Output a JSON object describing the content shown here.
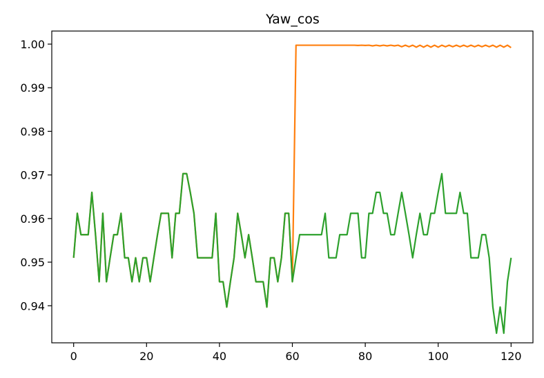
{
  "chart_data": {
    "type": "line",
    "title": "Yaw_cos",
    "xlabel": "",
    "ylabel": "",
    "xlim": [
      -6,
      126
    ],
    "ylim": [
      0.9315,
      1.003
    ],
    "xticks": [
      0,
      20,
      40,
      60,
      80,
      100,
      120
    ],
    "xtick_labels": [
      "0",
      "20",
      "40",
      "60",
      "80",
      "100",
      "120"
    ],
    "yticks": [
      0.94,
      0.95,
      0.96,
      0.97,
      0.98,
      0.99,
      1.0
    ],
    "ytick_labels": [
      "0.94",
      "0.95",
      "0.96",
      "0.97",
      "0.98",
      "0.99",
      "1.00"
    ],
    "grid": false,
    "legend": "none",
    "series": [
      {
        "color": "#ff7f0e",
        "x": [
          0,
          1,
          2,
          3,
          4,
          5,
          6,
          7,
          8,
          9,
          10,
          11,
          12,
          13,
          14,
          15,
          16,
          17,
          18,
          19,
          20,
          21,
          22,
          23,
          24,
          25,
          26,
          27,
          28,
          29,
          30,
          31,
          32,
          33,
          34,
          35,
          36,
          37,
          38,
          39,
          40,
          41,
          42,
          43,
          44,
          45,
          46,
          47,
          48,
          49,
          50,
          51,
          52,
          53,
          54,
          55,
          56,
          57,
          58,
          59,
          60,
          61,
          62,
          63,
          64,
          65,
          66,
          67,
          68,
          69,
          70,
          71,
          72,
          73,
          74,
          75,
          76,
          77,
          78,
          79,
          80,
          81,
          82,
          83,
          84,
          85,
          86,
          87,
          88,
          89,
          90,
          91,
          92,
          93,
          94,
          95,
          96,
          97,
          98,
          99,
          100,
          101,
          102,
          103,
          104,
          105,
          106,
          107,
          108,
          109,
          110,
          111,
          112,
          113,
          114,
          115,
          116,
          117,
          118,
          119,
          120
        ],
        "y": [
          0.951,
          0.9612,
          0.9563,
          0.9563,
          0.9563,
          0.966,
          0.9563,
          0.9455,
          0.9612,
          0.9455,
          0.951,
          0.9563,
          0.9563,
          0.9612,
          0.951,
          0.951,
          0.9455,
          0.951,
          0.9455,
          0.951,
          0.951,
          0.9455,
          0.951,
          0.9563,
          0.9612,
          0.9612,
          0.9612,
          0.951,
          0.9612,
          0.9612,
          0.9703,
          0.9703,
          0.966,
          0.9612,
          0.951,
          0.951,
          0.951,
          0.951,
          0.951,
          0.9612,
          0.9455,
          0.9455,
          0.9397,
          0.9455,
          0.951,
          0.9612,
          0.9563,
          0.951,
          0.9563,
          0.951,
          0.9455,
          0.9455,
          0.9455,
          0.9397,
          0.951,
          0.951,
          0.9455,
          0.951,
          0.9612,
          0.9612,
          0.9455,
          0.99975,
          0.99975,
          0.99975,
          0.99975,
          0.99975,
          0.99975,
          0.99975,
          0.99975,
          0.99975,
          0.99975,
          0.99975,
          0.99975,
          0.99975,
          0.99975,
          0.99975,
          0.99975,
          0.99975,
          0.9997,
          0.99975,
          0.9997,
          0.99975,
          0.9996,
          0.99975,
          0.9996,
          0.99975,
          0.9996,
          0.99975,
          0.9996,
          0.99975,
          0.9994,
          0.99975,
          0.9994,
          0.99975,
          0.9993,
          0.99975,
          0.9993,
          0.99975,
          0.9993,
          0.99975,
          0.9993,
          0.99975,
          0.9994,
          0.99975,
          0.9994,
          0.99975,
          0.9994,
          0.99975,
          0.9994,
          0.99975,
          0.9994,
          0.99975,
          0.9994,
          0.99975,
          0.9994,
          0.99975,
          0.9993,
          0.99975,
          0.9993,
          0.99975,
          0.9992
        ]
      },
      {
        "color": "#2ca02c",
        "x": [
          0,
          1,
          2,
          3,
          4,
          5,
          6,
          7,
          8,
          9,
          10,
          11,
          12,
          13,
          14,
          15,
          16,
          17,
          18,
          19,
          20,
          21,
          22,
          23,
          24,
          25,
          26,
          27,
          28,
          29,
          30,
          31,
          32,
          33,
          34,
          35,
          36,
          37,
          38,
          39,
          40,
          41,
          42,
          43,
          44,
          45,
          46,
          47,
          48,
          49,
          50,
          51,
          52,
          53,
          54,
          55,
          56,
          57,
          58,
          59,
          60,
          61,
          62,
          63,
          64,
          65,
          66,
          67,
          68,
          69,
          70,
          71,
          72,
          73,
          74,
          75,
          76,
          77,
          78,
          79,
          80,
          81,
          82,
          83,
          84,
          85,
          86,
          87,
          88,
          89,
          90,
          91,
          92,
          93,
          94,
          95,
          96,
          97,
          98,
          99,
          100,
          101,
          102,
          103,
          104,
          105,
          106,
          107,
          108,
          109,
          110,
          111,
          112,
          113,
          114,
          115,
          116,
          117,
          118,
          119,
          120
        ],
        "y": [
          0.951,
          0.9612,
          0.9563,
          0.9563,
          0.9563,
          0.966,
          0.9563,
          0.9455,
          0.9612,
          0.9455,
          0.951,
          0.9563,
          0.9563,
          0.9612,
          0.951,
          0.951,
          0.9455,
          0.951,
          0.9455,
          0.951,
          0.951,
          0.9455,
          0.951,
          0.9563,
          0.9612,
          0.9612,
          0.9612,
          0.951,
          0.9612,
          0.9612,
          0.9703,
          0.9703,
          0.966,
          0.9612,
          0.951,
          0.951,
          0.951,
          0.951,
          0.951,
          0.9612,
          0.9455,
          0.9455,
          0.9397,
          0.9455,
          0.951,
          0.9612,
          0.9563,
          0.951,
          0.9563,
          0.951,
          0.9455,
          0.9455,
          0.9455,
          0.9397,
          0.951,
          0.951,
          0.9455,
          0.951,
          0.9612,
          0.9612,
          0.9455,
          0.951,
          0.9563,
          0.9563,
          0.9563,
          0.9563,
          0.9563,
          0.9563,
          0.9563,
          0.9612,
          0.951,
          0.951,
          0.951,
          0.9563,
          0.9563,
          0.9563,
          0.9612,
          0.9612,
          0.9612,
          0.951,
          0.951,
          0.9612,
          0.9612,
          0.966,
          0.966,
          0.9612,
          0.9612,
          0.9563,
          0.9563,
          0.9612,
          0.966,
          0.9612,
          0.9563,
          0.951,
          0.9563,
          0.9612,
          0.9563,
          0.9563,
          0.9612,
          0.9612,
          0.966,
          0.9703,
          0.9612,
          0.9612,
          0.9612,
          0.9612,
          0.966,
          0.9612,
          0.9612,
          0.951,
          0.951,
          0.951,
          0.9563,
          0.9563,
          0.951,
          0.9397,
          0.9337,
          0.9397,
          0.9337,
          0.9455,
          0.951
        ]
      }
    ]
  }
}
